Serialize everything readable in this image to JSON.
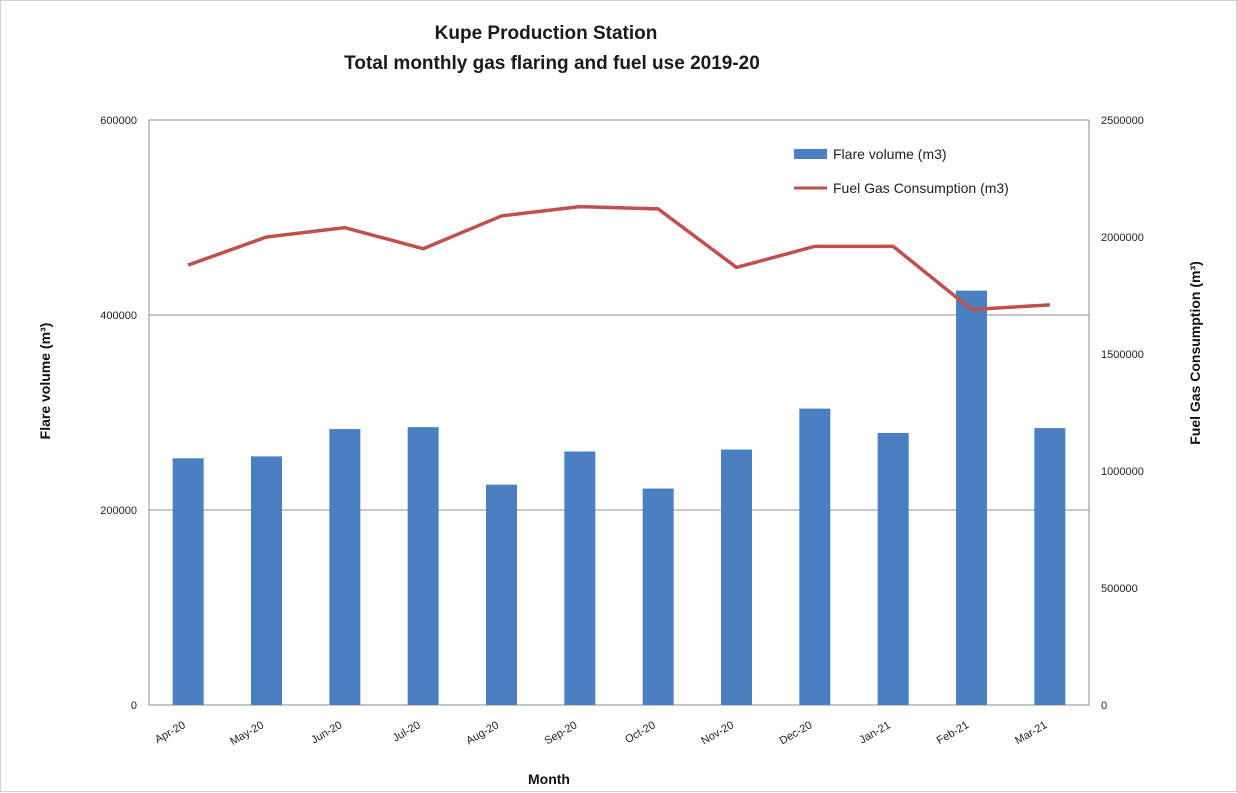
{
  "chart_data": {
    "type": "bar",
    "title": "Kupe Production Station",
    "subtitle": "Total monthly gas flaring and fuel use 2019-20",
    "xlabel": "Month",
    "ylabel": "Flare volume (m³)",
    "y2label": "Fuel Gas Consumption (m³)",
    "ylim": [
      0,
      600000
    ],
    "y2lim": [
      0,
      2500000
    ],
    "yticks": [
      "0",
      "200000",
      "400000",
      "600000"
    ],
    "y2ticks": [
      "0",
      "500000",
      "1000000",
      "1500000",
      "2000000",
      "2500000"
    ],
    "categories": [
      "Apr-20",
      "May-20",
      "Jun-20",
      "Jul-20",
      "Aug-20",
      "Sep-20",
      "Oct-20",
      "Nov-20",
      "Dec-20",
      "Jan-21",
      "Feb-21",
      "Mar-21"
    ],
    "series": [
      {
        "name": "Flare volume (m3)",
        "type": "bar",
        "axis": "left",
        "color": "#4a7fc1",
        "values": [
          253000,
          255000,
          283000,
          285000,
          226000,
          260000,
          222000,
          262000,
          304000,
          279000,
          425000,
          284000
        ]
      },
      {
        "name": "Fuel Gas Consumption (m3)",
        "type": "line",
        "axis": "right",
        "color": "#c0504d",
        "values": [
          1880000,
          2000000,
          2040000,
          1950000,
          2090000,
          2130000,
          2120000,
          1870000,
          1960000,
          1960000,
          1690000,
          1710000
        ]
      }
    ],
    "grid": "horizontal major gridlines on left axis",
    "legend": "top-right inside plot"
  }
}
